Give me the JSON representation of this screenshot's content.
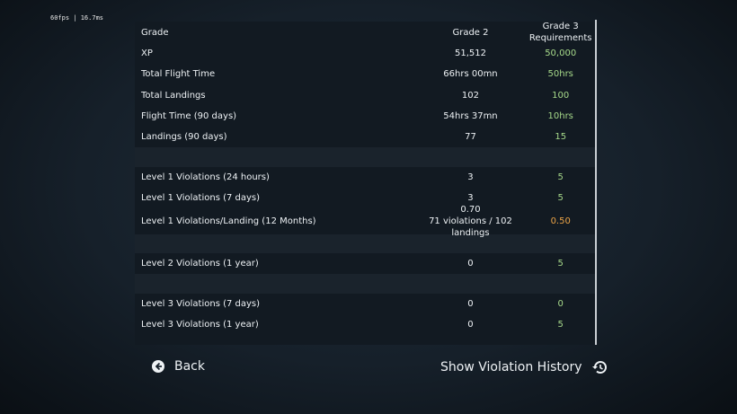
{
  "fps": "60fps | 16.7ms",
  "table": {
    "header": [
      "Grade",
      "Grade 2",
      "Grade 3 Requirements"
    ],
    "sections": [
      {
        "rows": [
          {
            "label": "XP",
            "current": "51,512",
            "required": "50,000",
            "color": "#a6d98a"
          },
          {
            "label": "Total Flight Time",
            "current": "66hrs 00mn",
            "required": "50hrs",
            "color": "#a6d98a"
          },
          {
            "label": "Total Landings",
            "current": "102",
            "required": "100",
            "color": "#a6d98a"
          },
          {
            "label": "Flight Time (90 days)",
            "current": "54hrs 37mn",
            "required": "10hrs",
            "color": "#a6d98a"
          },
          {
            "label": "Landings (90 days)",
            "current": "77",
            "required": "15",
            "color": "#a6d98a"
          }
        ]
      },
      {
        "rows": [
          {
            "label": "Level 1 Violations (24 hours)",
            "current": "3",
            "required": "5",
            "color": "#a6d98a"
          },
          {
            "label": "Level 1 Violations (7 days)",
            "current": "3",
            "required": "5",
            "color": "#a6d98a"
          },
          {
            "label": "Level 1 Violations/Landing (12 Months)",
            "current": "0.70",
            "detail": "71 violations / 102 landings",
            "required": "0.50",
            "color": "#e9a246"
          }
        ]
      },
      {
        "rows": [
          {
            "label": "Level 2 Violations (1 year)",
            "current": "0",
            "required": "5",
            "color": "#a6d98a"
          }
        ]
      },
      {
        "rows": [
          {
            "label": "Level 3 Violations (7 days)",
            "current": "0",
            "required": "0",
            "color": "#a6d98a"
          },
          {
            "label": "Level 3 Violations (1 year)",
            "current": "0",
            "required": "5",
            "color": "#a6d98a"
          }
        ]
      }
    ]
  },
  "buttons": {
    "back": "Back",
    "history": "Show Violation History"
  }
}
